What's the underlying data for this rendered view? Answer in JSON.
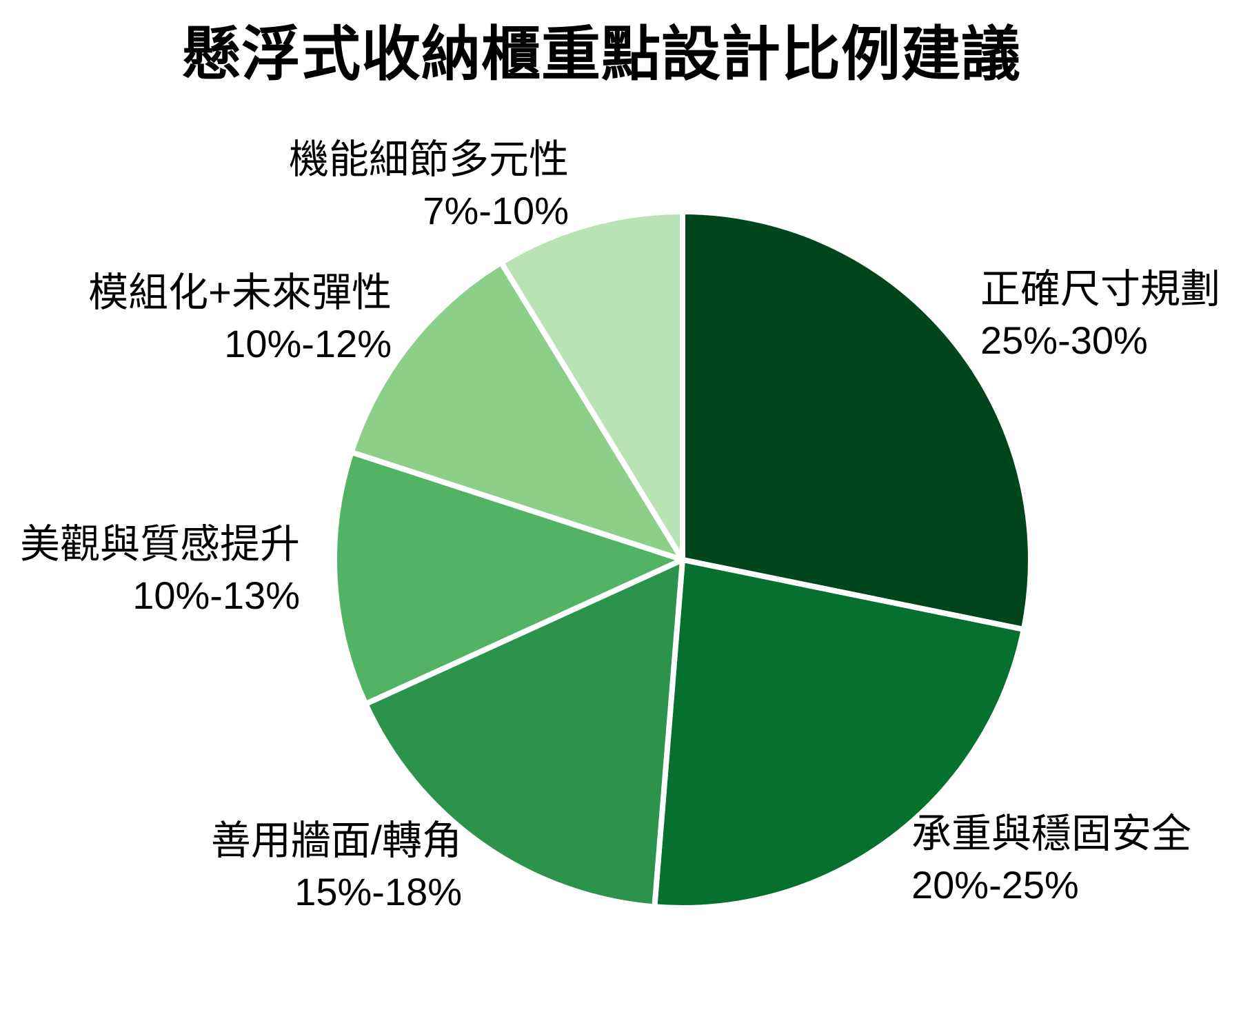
{
  "title": "懸浮式收納櫃重點設計比例建議",
  "chart_data": {
    "type": "pie",
    "title": "懸浮式收納櫃重點設計比例建議",
    "start": "top",
    "direction": "clockwise",
    "legend": "none",
    "label_placement": "outside",
    "background": "#FFFFFF",
    "text_color": "#000000",
    "slice_border_color": "#FFFFFF",
    "categories": [
      "正確尺寸規劃",
      "承重與穩固安全",
      "善用牆面/轉角",
      "美觀與質感提升",
      "模組化+未來彈性",
      "機能細節多元性"
    ],
    "value_labels": [
      "25%-30%",
      "20%-25%",
      "15%-18%",
      "10%-13%",
      "10%-12%",
      "7%-10%"
    ],
    "value_ranges_numeric": [
      [
        25,
        30
      ],
      [
        20,
        25
      ],
      [
        15,
        18
      ],
      [
        10,
        13
      ],
      [
        10,
        12
      ],
      [
        7,
        10
      ]
    ],
    "values_mid": [
      27.5,
      22.5,
      16.5,
      11.5,
      11,
      8.5
    ],
    "shares_pct_normalized": [
      28.2,
      23.1,
      16.9,
      11.8,
      11.3,
      8.7
    ],
    "colors": [
      "#00451C",
      "#06712F",
      "#2B934C",
      "#52B365",
      "#8BCF88",
      "#B9E2B5"
    ]
  }
}
